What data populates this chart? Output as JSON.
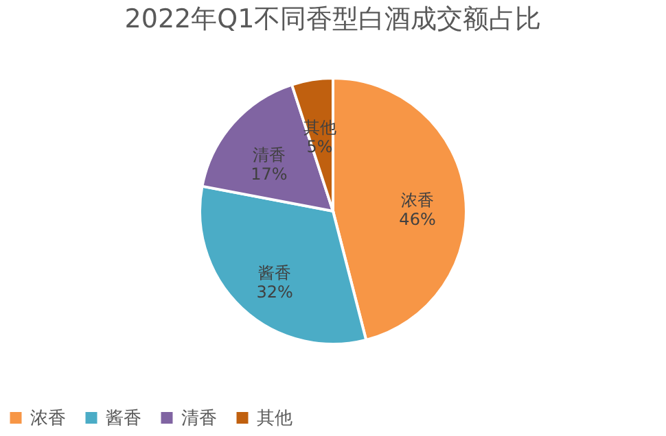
{
  "chart_data": {
    "type": "pie",
    "title": "2022年Q1不同香型白酒成交额占比",
    "categories": [
      "浓香",
      "酱香",
      "清香",
      "其他"
    ],
    "values": [
      46,
      32,
      17,
      5
    ],
    "colors": [
      "#f79646",
      "#4bacc6",
      "#8064a2",
      "#c0600f"
    ],
    "value_labels": [
      "46%",
      "32%",
      "17%",
      "5%"
    ],
    "legend": "bottom"
  }
}
